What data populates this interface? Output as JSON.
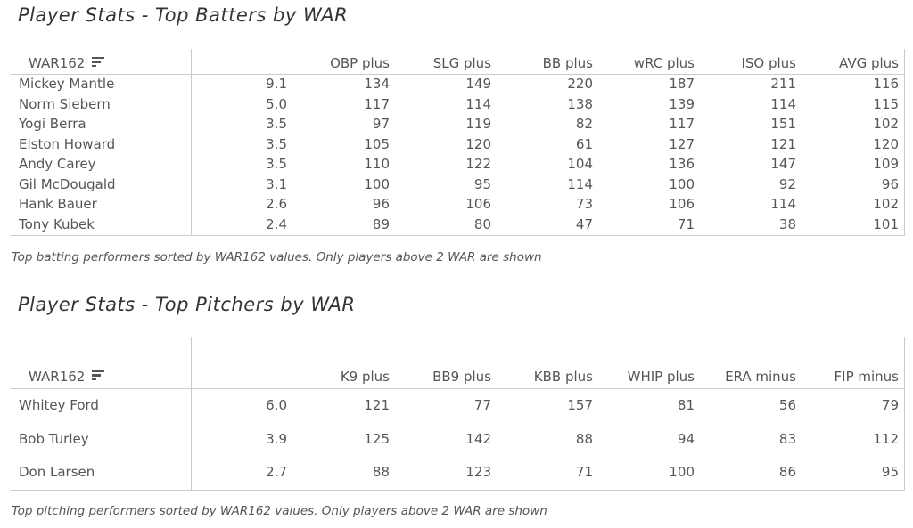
{
  "batters": {
    "title": "Player Stats - Top Batters by WAR",
    "columns": [
      "WAR162",
      "OBP plus",
      "SLG plus",
      "BB plus",
      "wRC plus",
      "ISO plus",
      "AVG plus"
    ],
    "sort_icon": "sort-descending-icon",
    "rows": [
      {
        "name": "Mickey Mantle",
        "values": [
          "9.1",
          "134",
          "149",
          "220",
          "187",
          "211",
          "116"
        ]
      },
      {
        "name": "Norm Siebern",
        "values": [
          "5.0",
          "117",
          "114",
          "138",
          "139",
          "114",
          "115"
        ]
      },
      {
        "name": "Yogi Berra",
        "values": [
          "3.5",
          "97",
          "119",
          "82",
          "117",
          "151",
          "102"
        ]
      },
      {
        "name": "Elston Howard",
        "values": [
          "3.5",
          "105",
          "120",
          "61",
          "127",
          "121",
          "120"
        ]
      },
      {
        "name": "Andy Carey",
        "values": [
          "3.5",
          "110",
          "122",
          "104",
          "136",
          "147",
          "109"
        ]
      },
      {
        "name": "Gil McDougald",
        "values": [
          "3.1",
          "100",
          "95",
          "114",
          "100",
          "92",
          "96"
        ]
      },
      {
        "name": "Hank Bauer",
        "values": [
          "2.6",
          "96",
          "106",
          "73",
          "106",
          "114",
          "102"
        ]
      },
      {
        "name": "Tony Kubek",
        "values": [
          "2.4",
          "89",
          "80",
          "47",
          "71",
          "38",
          "101"
        ]
      }
    ],
    "caption": "Top batting performers sorted by WAR162 values. Only players above 2 WAR are shown"
  },
  "pitchers": {
    "title": "Player Stats - Top Pitchers by WAR",
    "columns": [
      "WAR162",
      "K9 plus",
      "BB9 plus",
      "KBB plus",
      "WHIP plus",
      "ERA minus",
      "FIP minus"
    ],
    "sort_icon": "sort-descending-icon",
    "rows": [
      {
        "name": "Whitey Ford",
        "values": [
          "6.0",
          "121",
          "77",
          "157",
          "81",
          "56",
          "79"
        ]
      },
      {
        "name": "Bob Turley",
        "values": [
          "3.9",
          "125",
          "142",
          "88",
          "94",
          "83",
          "112"
        ]
      },
      {
        "name": "Don Larsen",
        "values": [
          "2.7",
          "88",
          "123",
          "71",
          "100",
          "86",
          "95"
        ]
      }
    ],
    "caption": "Top pitching performers sorted by WAR162 values. Only players above 2 WAR are shown"
  }
}
